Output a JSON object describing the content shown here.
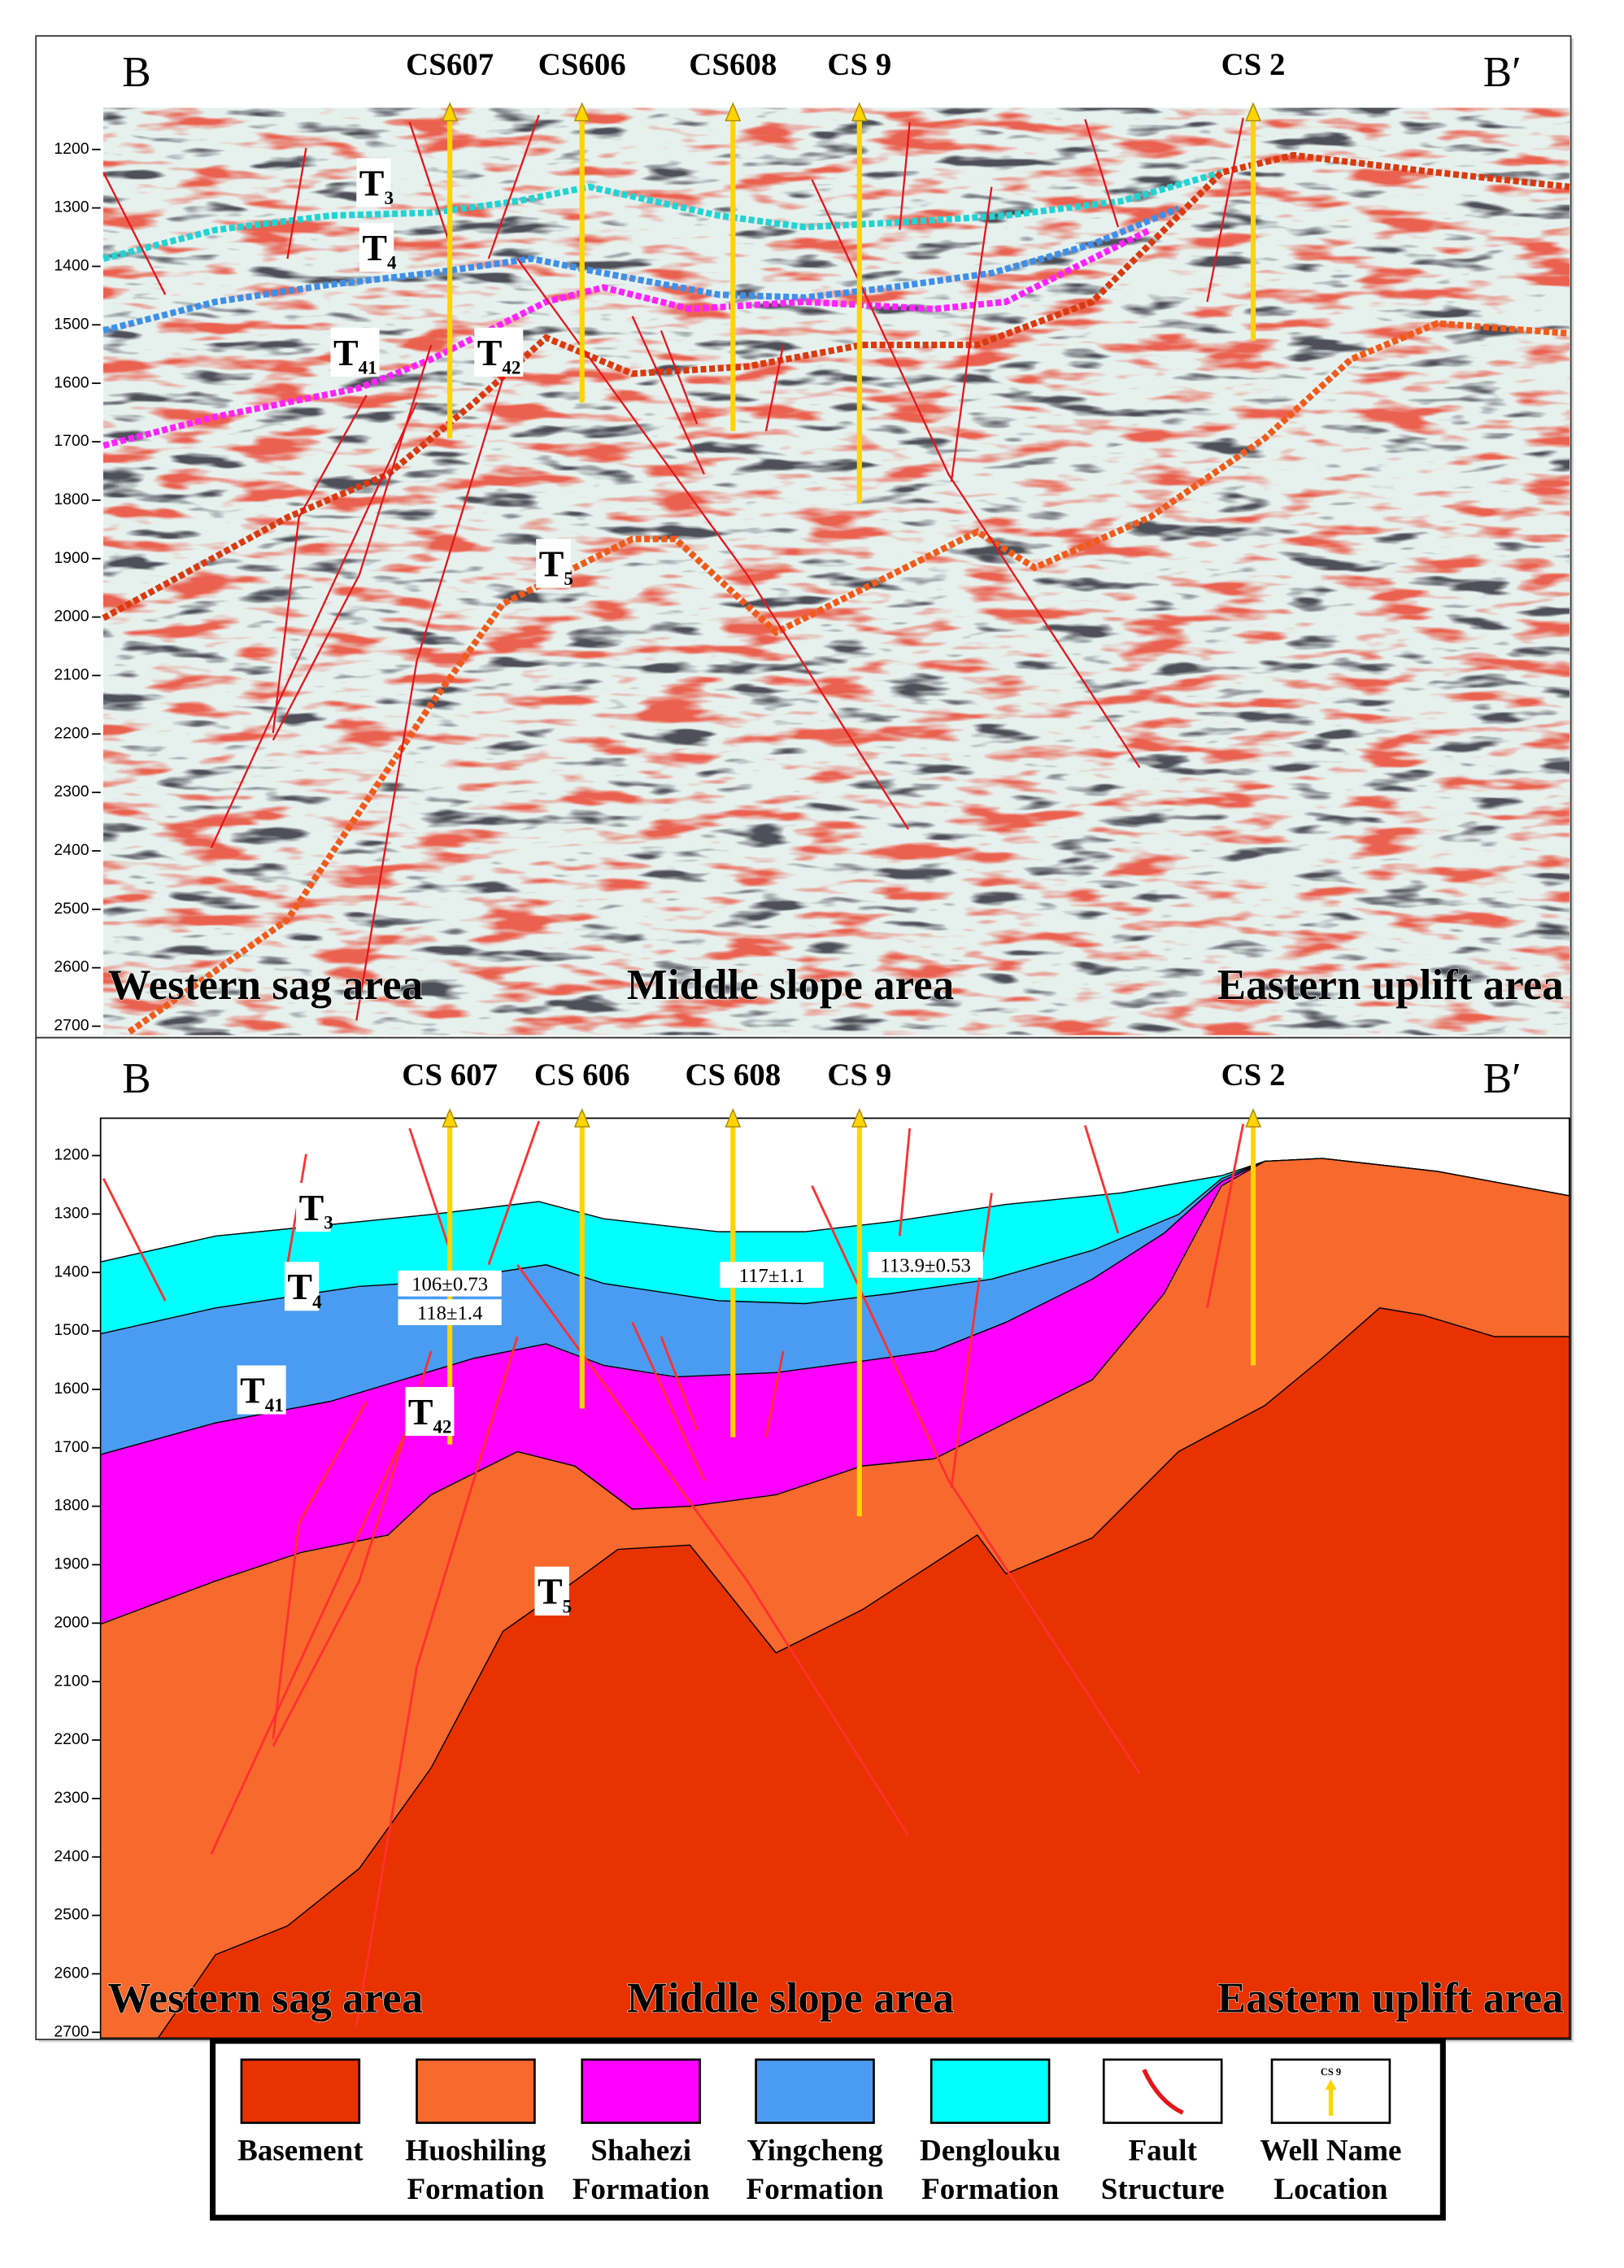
{
  "top_panel": {
    "left_label": "B",
    "right_label": "B′",
    "wells": [
      "CS607",
      "CS606",
      "CS608",
      "CS 9",
      "CS 2"
    ],
    "horizons": [
      {
        "main": "T",
        "sub": "3"
      },
      {
        "main": "T",
        "sub": "4"
      },
      {
        "main": "T",
        "sub": "41"
      },
      {
        "main": "T",
        "sub": "42"
      },
      {
        "main": "T",
        "sub": "5"
      }
    ],
    "depth_ticks": [
      1200,
      1300,
      1400,
      1500,
      1600,
      1700,
      1800,
      1900,
      2000,
      2100,
      2200,
      2300,
      2400,
      2500,
      2600,
      2700
    ],
    "areas": [
      "Western sag area",
      "Middle slope area",
      "Eastern uplift area"
    ]
  },
  "bottom_panel": {
    "left_label": "B",
    "right_label": "B′",
    "wells": [
      "CS 607",
      "CS 606",
      "CS 608",
      "CS 9",
      "CS 2"
    ],
    "horizons": [
      {
        "main": "T",
        "sub": "3"
      },
      {
        "main": "T",
        "sub": "4"
      },
      {
        "main": "T",
        "sub": "41"
      },
      {
        "main": "T",
        "sub": "42"
      },
      {
        "main": "T",
        "sub": "5"
      }
    ],
    "ages": [
      "106±0.73",
      "118±1.4",
      "117±1.1",
      "113.9±0.53"
    ],
    "depth_ticks": [
      1200,
      1300,
      1400,
      1500,
      1600,
      1700,
      1800,
      1900,
      2000,
      2100,
      2200,
      2300,
      2400,
      2500,
      2600,
      2700
    ],
    "areas": [
      "Western sag area",
      "Middle slope area",
      "Eastern uplift area"
    ]
  },
  "legend": [
    {
      "lines": [
        "Basement"
      ],
      "color": "#e83300"
    },
    {
      "lines": [
        "Huoshiling",
        "Formation"
      ],
      "color": "#f7692c"
    },
    {
      "lines": [
        "Shahezi",
        "Formation"
      ],
      "color": "#ff00ff"
    },
    {
      "lines": [
        "Yingcheng",
        "Formation"
      ],
      "color": "#4a9cf2"
    },
    {
      "lines": [
        "Denglouku",
        "Formation"
      ],
      "color": "#00ffff"
    },
    {
      "lines": [
        "Fault",
        "Structure"
      ]
    },
    {
      "lines": [
        "Well Name",
        "Location"
      ],
      "icon_text": "CS 9"
    }
  ]
}
